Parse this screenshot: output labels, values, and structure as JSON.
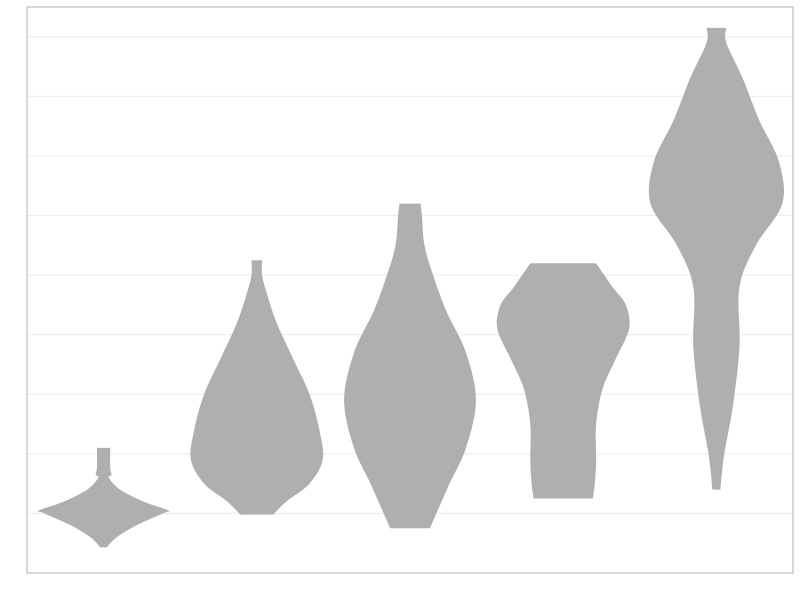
{
  "chart_data": {
    "type": "violin",
    "title": "",
    "xlabel": "",
    "ylabel": "",
    "ylim": [
      0,
      9.5
    ],
    "y_grid": [
      1,
      2,
      3,
      4,
      5,
      6,
      7,
      8,
      9
    ],
    "grid": "horizontal",
    "legend": "none",
    "colors": {
      "violin": "#afafaf",
      "grid": "#ececec",
      "frame": "#b0b0b0",
      "background": "#ffffff"
    },
    "series": [
      {
        "profile": [
          [
            0.43,
            0.05
          ],
          [
            0.6,
            0.2
          ],
          [
            0.8,
            0.5
          ],
          [
            1.0,
            0.9
          ],
          [
            1.05,
            0.98
          ],
          [
            1.2,
            0.6
          ],
          [
            1.4,
            0.25
          ],
          [
            1.6,
            0.08
          ],
          [
            1.65,
            0.12
          ],
          [
            1.77,
            0.1
          ],
          [
            2.1,
            0.1
          ]
        ]
      },
      {
        "profile": [
          [
            0.98,
            0.25
          ],
          [
            1.2,
            0.45
          ],
          [
            1.5,
            0.8
          ],
          [
            1.9,
            1.0
          ],
          [
            2.4,
            0.95
          ],
          [
            3.0,
            0.8
          ],
          [
            3.6,
            0.55
          ],
          [
            4.2,
            0.3
          ],
          [
            4.7,
            0.15
          ],
          [
            5.0,
            0.08
          ],
          [
            5.25,
            0.08
          ]
        ]
      },
      {
        "profile": [
          [
            0.75,
            0.3
          ],
          [
            1.0,
            0.4
          ],
          [
            1.5,
            0.6
          ],
          [
            2.1,
            0.85
          ],
          [
            2.9,
            1.0
          ],
          [
            3.7,
            0.85
          ],
          [
            4.4,
            0.55
          ],
          [
            5.0,
            0.35
          ],
          [
            5.5,
            0.22
          ],
          [
            6.0,
            0.18
          ],
          [
            6.2,
            0.16
          ]
        ]
      },
      {
        "profile": [
          [
            1.25,
            0.45
          ],
          [
            1.5,
            0.48
          ],
          [
            1.9,
            0.5
          ],
          [
            2.5,
            0.5
          ],
          [
            3.1,
            0.6
          ],
          [
            3.6,
            0.8
          ],
          [
            4.1,
            1.0
          ],
          [
            4.5,
            0.95
          ],
          [
            4.8,
            0.75
          ],
          [
            5.2,
            0.5
          ]
        ]
      },
      {
        "profile": [
          [
            1.4,
            0.06
          ],
          [
            2.0,
            0.12
          ],
          [
            2.8,
            0.25
          ],
          [
            3.8,
            0.35
          ],
          [
            4.8,
            0.35
          ],
          [
            5.5,
            0.6
          ],
          [
            6.2,
            1.0
          ],
          [
            6.9,
            0.95
          ],
          [
            7.6,
            0.65
          ],
          [
            8.3,
            0.4
          ],
          [
            8.9,
            0.15
          ],
          [
            9.15,
            0.15
          ]
        ]
      }
    ]
  }
}
